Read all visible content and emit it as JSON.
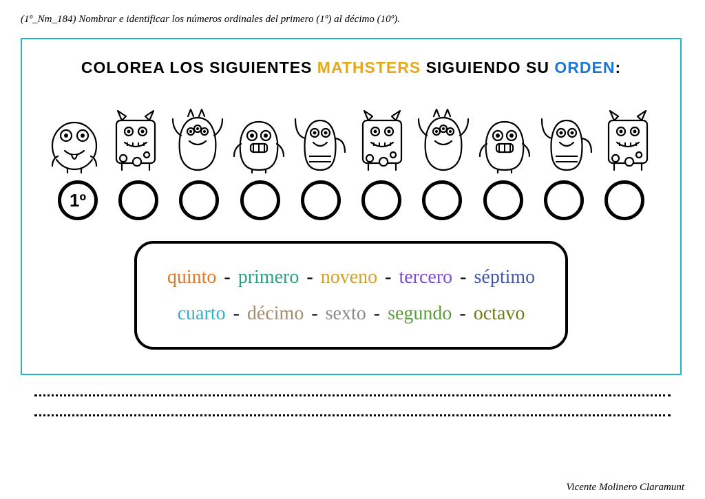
{
  "header": {
    "code_desc": "(1º_Nm_184) Nombrar e identificar los números ordinales del primero (1º) al décimo (10º)."
  },
  "box": {
    "border_color": "#1fb5c9",
    "title_parts": [
      {
        "text": "COLOREA LOS SIGUIENTES ",
        "color": "#000000"
      },
      {
        "text": "MATHSTERS",
        "color": "#e6a817"
      },
      {
        "text": " SIGUIENDO SU ",
        "color": "#000000"
      },
      {
        "text": "ORDEN",
        "color": "#1f77d4"
      },
      {
        "text": ":",
        "color": "#000000"
      }
    ],
    "monster_count": 10,
    "first_circle_label": "1º",
    "circle_stroke": "#000000",
    "monster_stroke": "#000000",
    "monster_fill": "#ffffff"
  },
  "words": {
    "line1": [
      {
        "text": "quinto",
        "color": "#e07a2b"
      },
      {
        "text": "primero",
        "color": "#2fa37a"
      },
      {
        "text": "noveno",
        "color": "#d4a02a"
      },
      {
        "text": "tercero",
        "color": "#7a4fd1"
      },
      {
        "text": "séptimo",
        "color": "#425aa8"
      }
    ],
    "line2": [
      {
        "text": "cuarto",
        "color": "#2fb1c6"
      },
      {
        "text": "décimo",
        "color": "#a38b6d"
      },
      {
        "text": "sexto",
        "color": "#8a8a8a"
      },
      {
        "text": "segundo",
        "color": "#5a9e3a"
      },
      {
        "text": "octavo",
        "color": "#6d7b0f"
      }
    ],
    "separator": " - "
  },
  "footer": {
    "author": "Vicente Molinero Claramunt"
  }
}
